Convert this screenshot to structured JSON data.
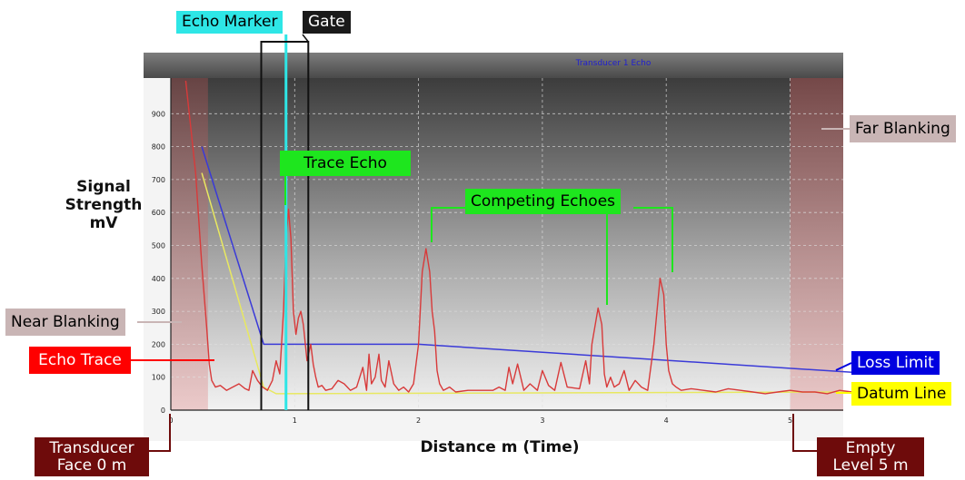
{
  "chart_data": {
    "type": "line",
    "title": "Transducer 1 Echo",
    "xlabel": "Distance m (Time)",
    "ylabel": "Signal Strength mV",
    "xlim": [
      0,
      5.5
    ],
    "ylim": [
      0,
      1000
    ],
    "x_ticks": [
      "0",
      "1",
      "2",
      "3",
      "4",
      "5"
    ],
    "y_ticks": [
      "0",
      "100",
      "200",
      "300",
      "400",
      "500",
      "600",
      "700",
      "800",
      "900"
    ],
    "grid": true,
    "series": [
      {
        "name": "Echo Trace",
        "color": "#d83a3a",
        "x": [
          0.12,
          0.2,
          0.25,
          0.29,
          0.31,
          0.33,
          0.36,
          0.4,
          0.45,
          0.5,
          0.55,
          0.6,
          0.63,
          0.66,
          0.7,
          0.74,
          0.78,
          0.82,
          0.85,
          0.88,
          0.91,
          0.93,
          0.95,
          0.97,
          0.99,
          1.01,
          1.03,
          1.05,
          1.07,
          1.1,
          1.13,
          1.15,
          1.17,
          1.19,
          1.22,
          1.25,
          1.3,
          1.35,
          1.4,
          1.45,
          1.5,
          1.55,
          1.58,
          1.6,
          1.62,
          1.65,
          1.68,
          1.7,
          1.73,
          1.76,
          1.8,
          1.84,
          1.88,
          1.92,
          1.96,
          2.0,
          2.03,
          2.06,
          2.09,
          2.11,
          2.13,
          2.15,
          2.17,
          2.2,
          2.25,
          2.3,
          2.4,
          2.5,
          2.6,
          2.65,
          2.7,
          2.73,
          2.76,
          2.8,
          2.85,
          2.9,
          2.93,
          2.96,
          3.0,
          3.05,
          3.1,
          3.15,
          3.2,
          3.3,
          3.35,
          3.38,
          3.4,
          3.45,
          3.48,
          3.5,
          3.52,
          3.55,
          3.58,
          3.62,
          3.66,
          3.7,
          3.75,
          3.8,
          3.85,
          3.9,
          3.95,
          3.98,
          4.0,
          4.02,
          4.05,
          4.08,
          4.12,
          4.2,
          4.3,
          4.4,
          4.5,
          4.6,
          4.7,
          4.8,
          4.9,
          5.0,
          5.1,
          5.2,
          5.3,
          5.4,
          5.5
        ],
        "y": [
          1000,
          720,
          440,
          250,
          140,
          90,
          70,
          75,
          60,
          70,
          80,
          65,
          60,
          120,
          90,
          70,
          60,
          90,
          150,
          110,
          300,
          520,
          610,
          520,
          300,
          230,
          280,
          300,
          260,
          150,
          200,
          140,
          100,
          70,
          75,
          60,
          65,
          90,
          80,
          60,
          70,
          130,
          60,
          170,
          80,
          100,
          170,
          90,
          70,
          150,
          80,
          60,
          70,
          55,
          80,
          200,
          420,
          490,
          420,
          300,
          240,
          120,
          80,
          60,
          70,
          55,
          60,
          60,
          60,
          70,
          60,
          130,
          80,
          140,
          60,
          80,
          70,
          60,
          120,
          75,
          60,
          145,
          70,
          65,
          150,
          80,
          200,
          310,
          260,
          110,
          70,
          100,
          70,
          80,
          120,
          60,
          90,
          70,
          60,
          200,
          400,
          350,
          200,
          120,
          80,
          70,
          60,
          65,
          60,
          55,
          65,
          60,
          55,
          50,
          55,
          60,
          55,
          55,
          50,
          60,
          55
        ]
      },
      {
        "name": "Loss Limit",
        "color": "#3a3ad8",
        "x": [
          0.25,
          0.75,
          2.0,
          5.5
        ],
        "y": [
          800,
          200,
          200,
          115
        ]
      },
      {
        "name": "Datum Line",
        "color": "#e8e860",
        "x": [
          0.25,
          0.75,
          0.85,
          5.5
        ],
        "y": [
          720,
          70,
          50,
          55
        ]
      }
    ],
    "regions": {
      "near_blanking": [
        0,
        0.3
      ],
      "far_blanking": [
        5.0,
        5.5
      ],
      "echo_marker_x": 0.93,
      "gate_x": [
        0.73,
        1.11
      ]
    },
    "annotations": {
      "echo_marker": "Echo Marker",
      "gate": "Gate",
      "trace_echo": "Trace Echo",
      "competing_echoes": "Competing Echoes",
      "far_blanking": "Far Blanking",
      "near_blanking": "Near Blanking",
      "echo_trace": "Echo Trace",
      "loss_limit": "Loss Limit",
      "datum_line": "Datum Line",
      "transducer_face": "Transducer Face 0 m",
      "empty_level": "Empty Level 5 m"
    },
    "colors": {
      "echo_marker_label": "#2ee6e6",
      "gate_label": "#1a1a1a",
      "trace_echo_label": "#1ee61e",
      "competing_label": "#1ee61e",
      "far_blanking_label": "#c9b5b5",
      "near_blanking_label": "#c9b5b5",
      "echo_trace_label": "#ff0000",
      "loss_limit_label": "#0000e0",
      "datum_line_label": "#ffff00",
      "position_label": "#6e0b0b"
    }
  }
}
